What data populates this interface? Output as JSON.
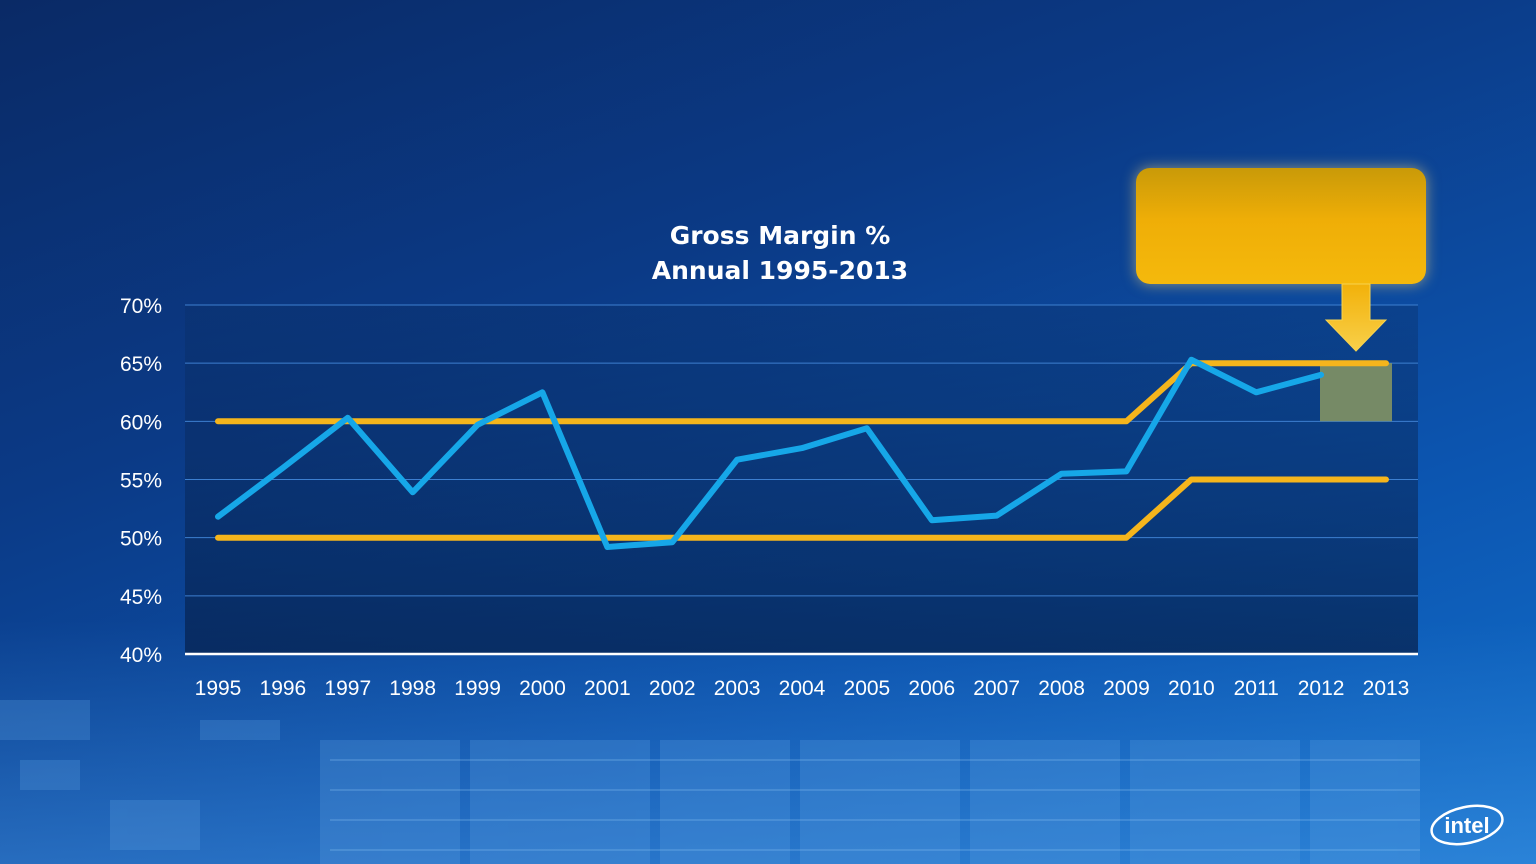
{
  "chart_data": {
    "type": "line",
    "title": "Gross Margin %",
    "subtitle": "Annual 1995-2013",
    "xlabel": "",
    "ylabel": "",
    "categories": [
      "1995",
      "1996",
      "1997",
      "1998",
      "1999",
      "2000",
      "2001",
      "2002",
      "2003",
      "2004",
      "2005",
      "2006",
      "2007",
      "2008",
      "2009",
      "2010",
      "2011",
      "2012",
      "2013"
    ],
    "y_ticks": [
      "40%",
      "45%",
      "50%",
      "55%",
      "60%",
      "65%",
      "70%"
    ],
    "ylim": [
      40,
      70
    ],
    "grid": true,
    "series": [
      {
        "color": "#16a7e8",
        "values": [
          51.8,
          56.0,
          60.3,
          53.9,
          59.7,
          62.5,
          49.2,
          49.6,
          56.7,
          57.7,
          59.4,
          51.5,
          51.9,
          55.5,
          55.7,
          65.3,
          62.5,
          64.0,
          null
        ]
      },
      {
        "color": "#f5b51c",
        "values": [
          60,
          60,
          60,
          60,
          60,
          60,
          60,
          60,
          60,
          60,
          60,
          60,
          60,
          60,
          60,
          65,
          65,
          65,
          65
        ]
      },
      {
        "color": "#f5b51c",
        "values": [
          50,
          50,
          50,
          50,
          50,
          50,
          50,
          50,
          50,
          50,
          50,
          50,
          50,
          50,
          50,
          55,
          55,
          55,
          55
        ]
      }
    ],
    "forecast_range": {
      "year": "2013",
      "low": 60,
      "high": 65,
      "color": "#8a9860"
    },
    "annotations": {
      "callout_color": "#f2b10a",
      "arrow_color": "#f5c020"
    }
  },
  "brand": {
    "logo_text": "intel"
  }
}
